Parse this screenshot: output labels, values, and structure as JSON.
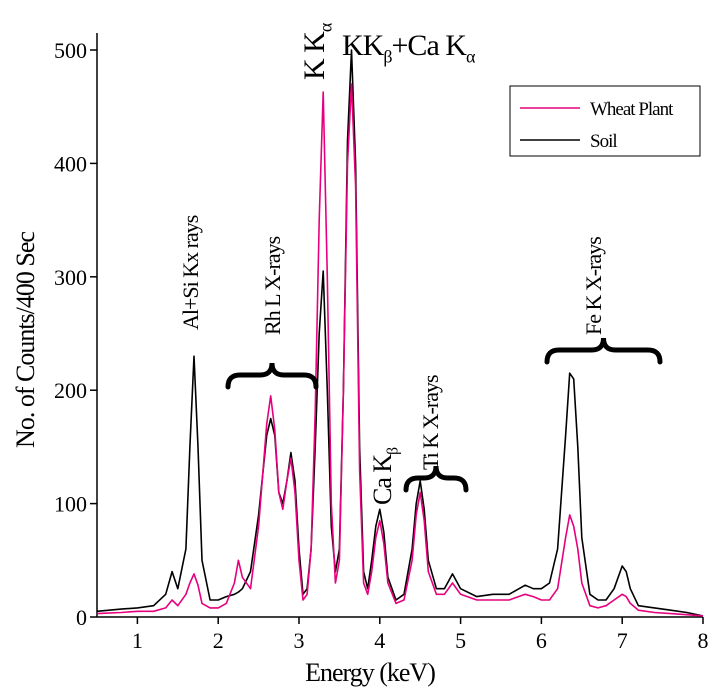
{
  "chart_data": {
    "type": "line",
    "xlabel": "Energy (keV)",
    "ylabel": "No. of  Counts/400 Sec",
    "x": [
      0.5,
      0.8,
      1.0,
      1.2,
      1.35,
      1.43,
      1.5,
      1.6,
      1.65,
      1.7,
      1.75,
      1.8,
      1.9,
      2.0,
      2.1,
      2.2,
      2.25,
      2.3,
      2.4,
      2.5,
      2.6,
      2.65,
      2.7,
      2.75,
      2.8,
      2.85,
      2.9,
      2.95,
      3.0,
      3.05,
      3.1,
      3.15,
      3.2,
      3.25,
      3.3,
      3.35,
      3.4,
      3.45,
      3.5,
      3.55,
      3.6,
      3.65,
      3.7,
      3.75,
      3.8,
      3.85,
      3.9,
      3.95,
      4.0,
      4.05,
      4.1,
      4.2,
      4.3,
      4.4,
      4.45,
      4.5,
      4.55,
      4.6,
      4.7,
      4.8,
      4.9,
      5.0,
      5.2,
      5.4,
      5.6,
      5.8,
      5.9,
      6.0,
      6.1,
      6.2,
      6.3,
      6.35,
      6.4,
      6.45,
      6.5,
      6.6,
      6.7,
      6.8,
      6.9,
      7.0,
      7.05,
      7.1,
      7.2,
      7.4,
      7.6,
      7.8,
      8.0
    ],
    "series": [
      {
        "name": "Wheat Plant",
        "color": "#e6007e",
        "values": [
          3,
          4,
          5,
          5,
          8,
          15,
          10,
          20,
          30,
          38,
          28,
          12,
          8,
          8,
          12,
          30,
          50,
          35,
          25,
          80,
          170,
          195,
          165,
          110,
          95,
          120,
          140,
          110,
          50,
          15,
          20,
          60,
          180,
          350,
          463,
          300,
          100,
          30,
          50,
          200,
          400,
          470,
          380,
          130,
          30,
          20,
          40,
          70,
          85,
          65,
          30,
          12,
          15,
          50,
          90,
          110,
          85,
          40,
          20,
          20,
          30,
          20,
          15,
          15,
          15,
          20,
          18,
          15,
          15,
          25,
          70,
          90,
          80,
          60,
          30,
          10,
          8,
          10,
          15,
          20,
          18,
          12,
          6,
          4,
          3,
          2,
          1
        ]
      },
      {
        "name": "Soil",
        "color": "#000000",
        "values": [
          5,
          7,
          8,
          10,
          20,
          40,
          25,
          60,
          150,
          230,
          150,
          50,
          15,
          15,
          18,
          20,
          22,
          25,
          40,
          90,
          160,
          175,
          160,
          110,
          100,
          120,
          145,
          120,
          60,
          20,
          25,
          60,
          150,
          250,
          305,
          200,
          80,
          40,
          60,
          200,
          420,
          500,
          400,
          150,
          40,
          25,
          50,
          80,
          95,
          75,
          35,
          15,
          20,
          60,
          100,
          120,
          95,
          50,
          25,
          25,
          38,
          25,
          18,
          20,
          20,
          28,
          25,
          25,
          30,
          60,
          160,
          215,
          210,
          150,
          70,
          20,
          15,
          15,
          25,
          45,
          40,
          25,
          10,
          8,
          6,
          4,
          1
        ]
      }
    ],
    "xlim": [
      0.5,
      8
    ],
    "xticks": [
      1,
      2,
      3,
      4,
      5,
      6,
      7,
      8
    ],
    "ylim": [
      0,
      515
    ],
    "yticks": [
      0,
      100,
      200,
      300,
      400,
      500
    ],
    "legend": "upper right",
    "annotations": [
      {
        "parts": [
          "Al+Si Kx rays"
        ]
      },
      {
        "parts": [
          "Rh L X-rays"
        ]
      },
      {
        "parts": [
          "K K",
          "α"
        ]
      },
      {
        "parts": [
          "KK",
          "β",
          "+Ca K",
          "α"
        ]
      },
      {
        "parts": [
          "Ca K",
          "β"
        ]
      },
      {
        "parts": [
          "Ti K X-rays"
        ]
      },
      {
        "parts": [
          "Fe K X-rays"
        ]
      }
    ]
  }
}
